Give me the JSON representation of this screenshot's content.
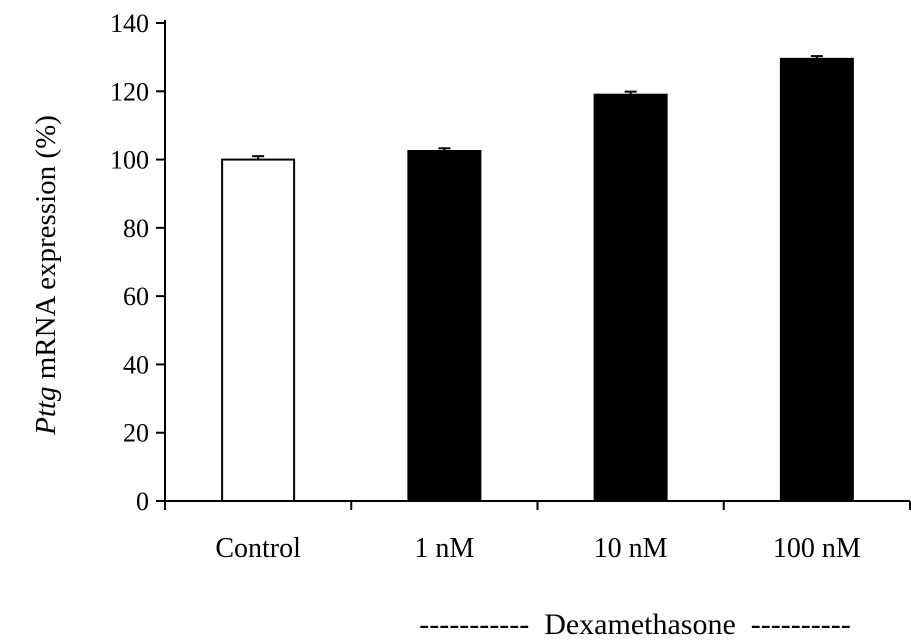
{
  "chart_data": {
    "type": "bar",
    "categories": [
      "Control",
      "1 nM",
      "10 nM",
      "100 nM"
    ],
    "values": [
      100,
      102.5,
      119,
      129.5
    ],
    "errors": [
      1,
      0.8,
      0.9,
      0.8
    ],
    "bar_colors": [
      "#ffffff",
      "#000000",
      "#000000",
      "#000000"
    ],
    "ylabel_italic": "Pttg",
    "ylabel_rest": " mRNA expression (%)",
    "ylim": [
      0,
      140
    ],
    "yticks": [
      0,
      20,
      40,
      60,
      80,
      100,
      120,
      140
    ],
    "group_label": "-----------  Dexamethasone  ----------",
    "grid": false
  }
}
